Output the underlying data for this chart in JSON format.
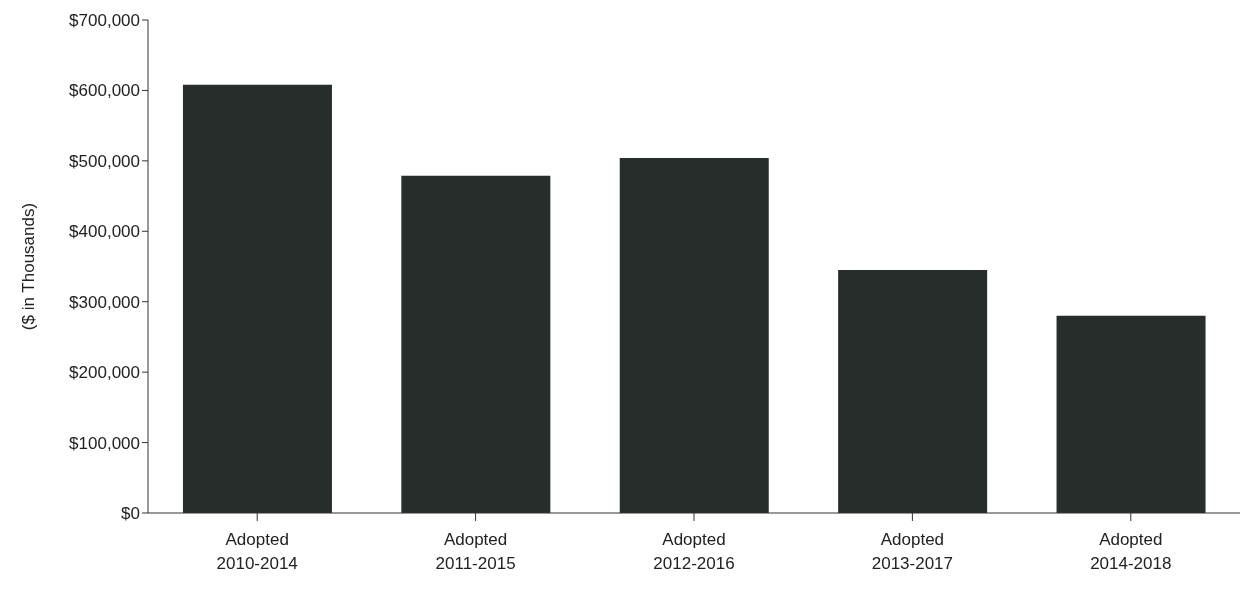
{
  "chart_data": {
    "type": "bar",
    "ylabel": "($ in Thousands)",
    "categories": [
      "Adopted\n2010-2014",
      "Adopted\n2011-2015",
      "Adopted\n2012-2016",
      "Adopted\n2013-2017",
      "Adopted\n2014-2018"
    ],
    "values": [
      608000,
      479000,
      504000,
      345000,
      280000
    ],
    "color": "#262d2a",
    "ylim": [
      0,
      700000
    ],
    "yticks": [
      {
        "value": 0,
        "label": "$0"
      },
      {
        "value": 100000,
        "label": "$100,000"
      },
      {
        "value": 200000,
        "label": "$200,000"
      },
      {
        "value": 300000,
        "label": "$300,000"
      },
      {
        "value": 400000,
        "label": "$400,000"
      },
      {
        "value": 500000,
        "label": "$500,000"
      },
      {
        "value": 600000,
        "label": "$600,000"
      },
      {
        "value": 700000,
        "label": "$700,000"
      }
    ],
    "grid": false
  }
}
